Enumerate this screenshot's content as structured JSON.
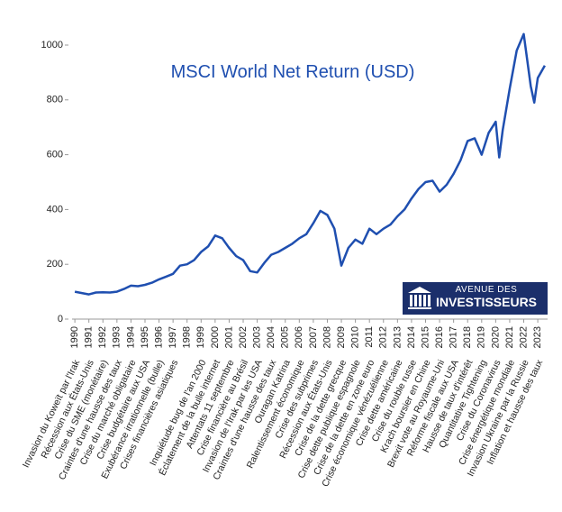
{
  "chart_data": {
    "type": "line",
    "title": "MSCI World Net Return (USD)",
    "color": "#1f4fb0",
    "x": [
      1990,
      1990.5,
      1991,
      1991.5,
      1992,
      1992.5,
      1993,
      1993.5,
      1994,
      1994.5,
      1995,
      1995.5,
      1996,
      1996.5,
      1997,
      1997.5,
      1998,
      1998.5,
      1999,
      1999.5,
      2000,
      2000.5,
      2001,
      2001.5,
      2002,
      2002.5,
      2003,
      2003.5,
      2004,
      2004.5,
      2005,
      2005.5,
      2006,
      2006.5,
      2007,
      2007.5,
      2008,
      2008.5,
      2009,
      2009.5,
      2010,
      2010.5,
      2011,
      2011.5,
      2012,
      2012.5,
      2013,
      2013.5,
      2014,
      2014.5,
      2015,
      2015.5,
      2016,
      2016.5,
      2017,
      2017.5,
      2018,
      2018.5,
      2019,
      2019.5,
      2020,
      2020.25,
      2020.5,
      2021,
      2021.5,
      2022,
      2022.5,
      2022.75,
      2023,
      2023.5
    ],
    "values": [
      100,
      95,
      90,
      97,
      98,
      97,
      100,
      110,
      122,
      120,
      125,
      133,
      145,
      155,
      165,
      195,
      200,
      215,
      245,
      265,
      305,
      295,
      260,
      230,
      215,
      175,
      170,
      205,
      235,
      245,
      260,
      275,
      295,
      310,
      350,
      395,
      380,
      330,
      195,
      260,
      290,
      275,
      330,
      310,
      330,
      345,
      375,
      400,
      440,
      475,
      500,
      505,
      465,
      490,
      530,
      580,
      650,
      660,
      600,
      680,
      720,
      590,
      690,
      840,
      980,
      1040,
      850,
      790,
      880,
      925
    ],
    "xlim": [
      1989.8,
      2023.7
    ],
    "xticks": [
      1990,
      1991,
      1992,
      1993,
      1994,
      1995,
      1996,
      1997,
      1998,
      1999,
      2000,
      2001,
      2002,
      2003,
      2004,
      2005,
      2006,
      2007,
      2008,
      2009,
      2010,
      2011,
      2012,
      2013,
      2014,
      2015,
      2016,
      2017,
      2018,
      2019,
      2020,
      2021,
      2022,
      2023
    ],
    "ylim": [
      0,
      1000
    ],
    "yticks": [
      0,
      200,
      400,
      600,
      800,
      1000
    ],
    "annotations": [
      {
        "x": 1990,
        "text": "Invasion du Koweït par l'Irak"
      },
      {
        "x": 1991,
        "text": "Récession aux États-Unis"
      },
      {
        "x": 1992,
        "text": "Crise du SME (monétaire)"
      },
      {
        "x": 1993,
        "text": "Craintes d'une hausse des taux"
      },
      {
        "x": 1994,
        "text": "Crise du marché obligataire"
      },
      {
        "x": 1995,
        "text": "Crise budgétaire aux USA"
      },
      {
        "x": 1996,
        "text": "Exubérance irrationnelle (bulle)"
      },
      {
        "x": 1997,
        "text": "Crises financières asiatiques"
      },
      {
        "x": 1999,
        "text": "Inquiétude bug de l'an 2000"
      },
      {
        "x": 2000,
        "text": "Éclatement de la bulle internet"
      },
      {
        "x": 2001,
        "text": "Attentats 11 septembre"
      },
      {
        "x": 2002,
        "text": "Crise financière au Brésil"
      },
      {
        "x": 2003,
        "text": "Invasion de l'Irak par les USA"
      },
      {
        "x": 2004,
        "text": "Craintes d'une hausse des taux"
      },
      {
        "x": 2005,
        "text": "Ouragan Katrina"
      },
      {
        "x": 2006,
        "text": "Ralentissement économique"
      },
      {
        "x": 2007,
        "text": "Crise des subprimes"
      },
      {
        "x": 2008,
        "text": "Récession aux États-Unis"
      },
      {
        "x": 2009,
        "text": "Crise de la dette grecque"
      },
      {
        "x": 2010,
        "text": "Crise dette publique espagnole"
      },
      {
        "x": 2011,
        "text": "Crise de la dette en zone euro"
      },
      {
        "x": 2012,
        "text": "Crise économique vénézuélienne"
      },
      {
        "x": 2013,
        "text": "Crise dette américaine"
      },
      {
        "x": 2014,
        "text": "Crise du rouble russe"
      },
      {
        "x": 2015,
        "text": "Krach boursier en Chine"
      },
      {
        "x": 2016,
        "text": "Brexit vote au Royaume-Uni"
      },
      {
        "x": 2017,
        "text": "Réforme fiscale aux USA"
      },
      {
        "x": 2018,
        "text": "Hausse de taux d'intérêt"
      },
      {
        "x": 2019,
        "text": "Quantitative Tightening"
      },
      {
        "x": 2020,
        "text": "Crise du Coronavirus"
      },
      {
        "x": 2021,
        "text": "Crise énergétique mondiale"
      },
      {
        "x": 2022,
        "text": "Invasion Ukraine par la Russie"
      },
      {
        "x": 2023,
        "text": "Inflation et hausse des taux"
      }
    ],
    "logo": {
      "line1": "AVENUE DES",
      "line2": "INVESTISSEURS"
    }
  }
}
